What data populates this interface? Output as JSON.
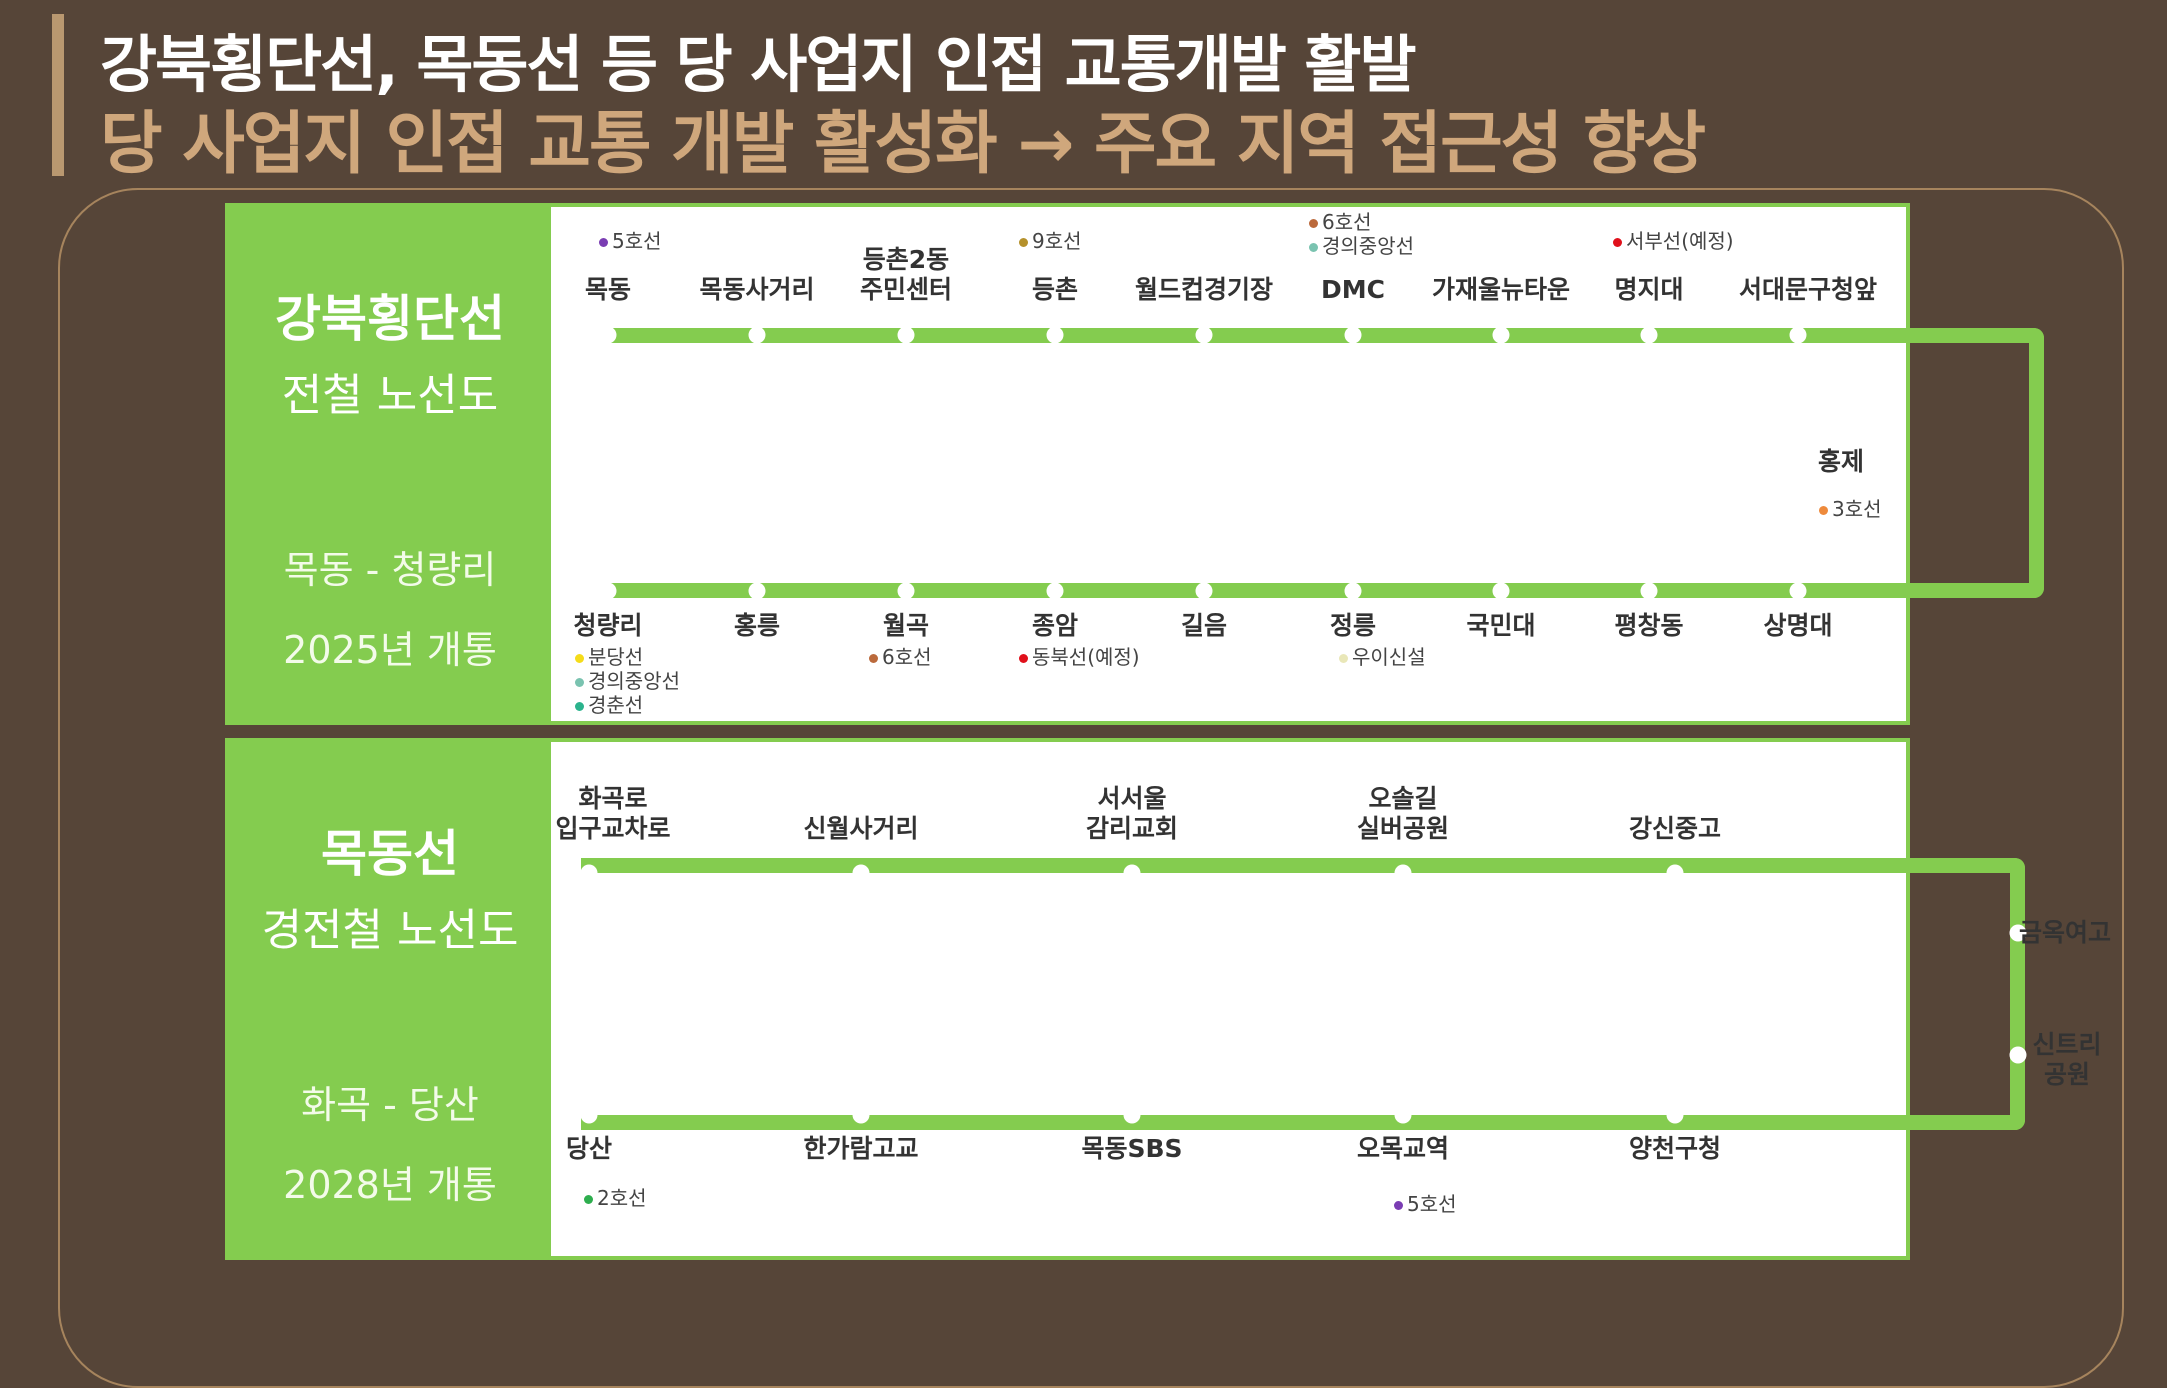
{
  "header": {
    "title": "강북횡단선, 목동선 등 당 사업지 인접 교통개발 활발",
    "subtitle": "당 사업지 인접 교통 개발 활성화 → 주요 지역 접근성 향상"
  },
  "lines": [
    {
      "name": "강북횡단선",
      "type": "전철 노선도",
      "range": "목동 - 청량리",
      "open": "2025년 개통",
      "top_stations": [
        "목동",
        "목동사거리",
        "등촌2동\n주민센터",
        "등촌",
        "월드컵경기장",
        "DMC",
        "가재울뉴타운",
        "명지대",
        "서대문구청앞"
      ],
      "side_stations": [
        "홍제"
      ],
      "bottom_stations": [
        "청량리",
        "홍릉",
        "월곡",
        "종암",
        "길음",
        "정릉",
        "국민대",
        "평창동",
        "상명대"
      ],
      "transfers": {
        "top": [
          {
            "station": "목동",
            "lines": [
              {
                "label": "5호선",
                "color": "#7a3db3"
              }
            ]
          },
          {
            "station": "등촌",
            "lines": [
              {
                "label": "9호선",
                "color": "#b5912b"
              }
            ]
          },
          {
            "station": "DMC",
            "lines": [
              {
                "label": "6호선",
                "color": "#bb6a3c"
              },
              {
                "label": "경의중앙선",
                "color": "#7ac3b0"
              }
            ]
          },
          {
            "station": "명지대",
            "lines": [
              {
                "label": "서부선(예정)",
                "color": "#e0101b"
              }
            ]
          }
        ],
        "side": [
          {
            "station": "홍제",
            "lines": [
              {
                "label": "3호선",
                "color": "#ee8a3c"
              }
            ]
          }
        ],
        "bottom": [
          {
            "station": "청량리",
            "lines": [
              {
                "label": "분당선",
                "color": "#f5dc1a"
              },
              {
                "label": "경의중앙선",
                "color": "#7ac3b0"
              },
              {
                "label": "경춘선",
                "color": "#2bb38d"
              }
            ]
          },
          {
            "station": "월곡",
            "lines": [
              {
                "label": "6호선",
                "color": "#bb6a3c"
              }
            ]
          },
          {
            "station": "종암",
            "lines": [
              {
                "label": "동북선(예정)",
                "color": "#e0101b"
              }
            ]
          },
          {
            "station": "정릉",
            "lines": [
              {
                "label": "우이신설",
                "color": "#e9e7b8"
              }
            ]
          }
        ]
      }
    },
    {
      "name": "목동선",
      "type": "경전철 노선도",
      "range": "화곡 - 당산",
      "open": "2028년 개통",
      "top_stations": [
        "화곡로\n입구교차로",
        "신월사거리",
        "서서울\n감리교회",
        "오솔길\n실버공원",
        "강신중고"
      ],
      "side_stations": [
        "금옥여고",
        "신트리\n공원"
      ],
      "bottom_stations": [
        "당산",
        "한가람고교",
        "목동SBS",
        "오목교역",
        "양천구청"
      ],
      "transfers": {
        "bottom": [
          {
            "station": "당산",
            "lines": [
              {
                "label": "2호선",
                "color": "#2eae4e"
              }
            ]
          },
          {
            "station": "오목교역",
            "lines": [
              {
                "label": "5호선",
                "color": "#7a3db3"
              }
            ]
          }
        ]
      }
    }
  ],
  "colors": {
    "background": "#564538",
    "accent": "#cfa77c",
    "line_green": "#84cc4f"
  }
}
